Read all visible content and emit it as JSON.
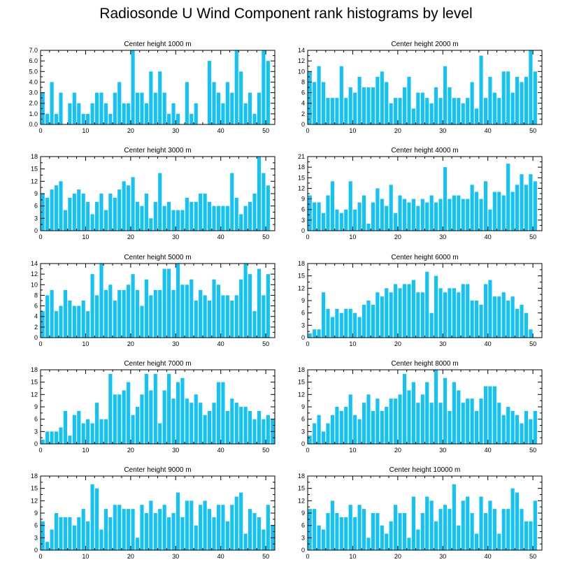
{
  "figure": {
    "title": "Radiosonde U Wind Component rank histograms by level",
    "bar_color": "#12c3f4",
    "axis_color": "#000000"
  },
  "chart_data": [
    {
      "type": "bar",
      "title": "Center height 1000 m",
      "xlim": [
        0,
        52
      ],
      "xticks": [
        0,
        10,
        20,
        30,
        40,
        50
      ],
      "ylim": [
        0,
        7
      ],
      "yticks": [
        0,
        1,
        2,
        3,
        4,
        5,
        6,
        7
      ],
      "ytick_labels": [
        "0.0",
        "1.0",
        "2.0",
        "3.0",
        "4.0",
        "5.0",
        "6.0",
        "7.0"
      ],
      "values": [
        3,
        1,
        4,
        1,
        3,
        0,
        2,
        3,
        2,
        1,
        1,
        2,
        3,
        3,
        2,
        1,
        3,
        4,
        2,
        2,
        7,
        3,
        3,
        2,
        5,
        3,
        5,
        3,
        1,
        2,
        1,
        0,
        4,
        1,
        2,
        0,
        0,
        6,
        4,
        3,
        2,
        4,
        3,
        7,
        5,
        2,
        3,
        1,
        3,
        7,
        6
      ]
    },
    {
      "type": "bar",
      "title": "Center height 2000 m",
      "xlim": [
        0,
        52
      ],
      "xticks": [
        0,
        10,
        20,
        30,
        40,
        50
      ],
      "ylim": [
        0,
        14
      ],
      "yticks": [
        0,
        2,
        4,
        6,
        8,
        10,
        12,
        14
      ],
      "ytick_labels": [
        "0",
        "2",
        "4",
        "6",
        "8",
        "10",
        "12",
        "14"
      ],
      "values": [
        10,
        8,
        11,
        8,
        5,
        5,
        5,
        11,
        5,
        7,
        6,
        9,
        7,
        7,
        7,
        9,
        10,
        8,
        4,
        5,
        5,
        7,
        9,
        3,
        6,
        6,
        5,
        4,
        7,
        5,
        11,
        7,
        5,
        5,
        4,
        5,
        8,
        3,
        13,
        5,
        9,
        6,
        5,
        10,
        10,
        6,
        9,
        8,
        9,
        14,
        10
      ]
    },
    {
      "type": "bar",
      "title": "Center height 3000 m",
      "xlim": [
        0,
        52
      ],
      "xticks": [
        0,
        10,
        20,
        30,
        40,
        50
      ],
      "ylim": [
        0,
        18
      ],
      "yticks": [
        0,
        3,
        6,
        9,
        12,
        15,
        18
      ],
      "ytick_labels": [
        "0",
        "3",
        "6",
        "9",
        "12",
        "15",
        "18"
      ],
      "values": [
        9,
        8,
        10,
        11,
        12,
        5,
        8,
        9,
        10,
        9,
        7,
        4,
        7,
        9,
        5,
        9,
        8,
        10,
        12,
        11,
        13,
        7,
        6,
        9,
        3,
        7,
        14,
        6,
        7,
        5,
        5,
        5,
        8,
        7,
        7,
        9,
        9,
        7,
        6,
        6,
        6,
        6,
        14,
        8,
        4,
        6,
        7,
        9,
        18,
        14,
        11
      ]
    },
    {
      "type": "bar",
      "title": "Center height 4000 m",
      "xlim": [
        0,
        52
      ],
      "xticks": [
        0,
        10,
        20,
        30,
        40,
        50
      ],
      "ylim": [
        0,
        21
      ],
      "yticks": [
        0,
        3,
        6,
        9,
        12,
        15,
        18,
        21
      ],
      "ytick_labels": [
        "0",
        "3",
        "6",
        "9",
        "12",
        "15",
        "18",
        "21"
      ],
      "values": [
        10,
        8,
        8,
        5,
        10,
        14,
        6,
        5,
        6,
        14,
        6,
        8,
        10,
        2,
        8,
        12,
        9,
        7,
        13,
        5,
        10,
        9,
        8,
        9,
        7,
        9,
        8,
        10,
        8,
        9,
        18,
        9,
        10,
        10,
        9,
        9,
        13,
        11,
        9,
        14,
        6,
        11,
        11,
        10,
        19,
        11,
        13,
        16,
        13,
        16,
        14
      ]
    },
    {
      "type": "bar",
      "title": "Center height 5000 m",
      "xlim": [
        0,
        52
      ],
      "xticks": [
        0,
        10,
        20,
        30,
        40,
        50
      ],
      "ylim": [
        0,
        14
      ],
      "yticks": [
        0,
        2,
        4,
        6,
        8,
        10,
        12,
        14
      ],
      "ytick_labels": [
        "0",
        "2",
        "4",
        "6",
        "8",
        "10",
        "12",
        "14"
      ],
      "values": [
        5,
        8,
        9,
        5,
        6,
        9,
        7,
        6,
        6,
        7,
        5,
        12,
        8,
        14,
        9,
        10,
        7,
        9,
        9,
        10,
        12,
        9,
        6,
        11,
        8,
        9,
        9,
        13,
        13,
        9,
        14,
        10,
        10,
        11,
        7,
        9,
        8,
        7,
        11,
        10,
        8,
        8,
        7,
        8,
        11,
        14,
        12,
        5,
        13,
        8,
        12
      ]
    },
    {
      "type": "bar",
      "title": "Center height 6000 m",
      "xlim": [
        0,
        52
      ],
      "xticks": [
        0,
        10,
        20,
        30,
        40,
        50
      ],
      "ylim": [
        0,
        18
      ],
      "yticks": [
        0,
        3,
        6,
        9,
        12,
        15,
        18
      ],
      "ytick_labels": [
        "0",
        "3",
        "6",
        "9",
        "12",
        "15",
        "18"
      ],
      "values": [
        1,
        2,
        2,
        11,
        7,
        5,
        7,
        6,
        7,
        7,
        6,
        5,
        8,
        9,
        8,
        11,
        10,
        12,
        11,
        13,
        12,
        13,
        13,
        14,
        11,
        11,
        16,
        6,
        15,
        12,
        11,
        12,
        12,
        11,
        13,
        13,
        9,
        9,
        8,
        13,
        14,
        10,
        10,
        11,
        9,
        10,
        7,
        8,
        6,
        2,
        0
      ]
    },
    {
      "type": "bar",
      "title": "Center height 7000 m",
      "xlim": [
        0,
        52
      ],
      "xticks": [
        0,
        10,
        20,
        30,
        40,
        50
      ],
      "ylim": [
        0,
        18
      ],
      "yticks": [
        0,
        3,
        6,
        9,
        12,
        15,
        18
      ],
      "ytick_labels": [
        "0",
        "3",
        "6",
        "9",
        "12",
        "15",
        "18"
      ],
      "values": [
        1,
        3,
        3,
        3,
        4,
        8,
        2,
        7,
        8,
        5,
        6,
        5,
        10,
        6,
        6,
        17,
        12,
        12,
        13,
        15,
        7,
        9,
        12,
        17,
        13,
        17,
        5,
        13,
        17,
        11,
        15,
        16,
        11,
        10,
        12,
        10,
        7,
        8,
        10,
        15,
        15,
        8,
        11,
        10,
        9,
        9,
        8,
        6,
        8,
        6,
        7,
        6
      ]
    },
    {
      "type": "bar",
      "title": "Center height 8000 m",
      "xlim": [
        0,
        52
      ],
      "xticks": [
        0,
        10,
        20,
        30,
        40,
        50
      ],
      "ylim": [
        0,
        18
      ],
      "yticks": [
        0,
        3,
        6,
        9,
        12,
        15,
        18
      ],
      "ytick_labels": [
        "0",
        "3",
        "6",
        "9",
        "12",
        "15",
        "18"
      ],
      "values": [
        2,
        5,
        7,
        3,
        5,
        7,
        9,
        8,
        9,
        12,
        7,
        6,
        10,
        12,
        8,
        11,
        8,
        9,
        11,
        11,
        12,
        17,
        13,
        15,
        10,
        12,
        15,
        10,
        18,
        10,
        16,
        8,
        15,
        13,
        10,
        11,
        11,
        8,
        11,
        14,
        14,
        14,
        10,
        7,
        9,
        8,
        7,
        5,
        8,
        6,
        8
      ]
    },
    {
      "type": "bar",
      "title": "Center height 9000 m",
      "xlim": [
        0,
        52
      ],
      "xticks": [
        0,
        10,
        20,
        30,
        40,
        50
      ],
      "ylim": [
        0,
        18
      ],
      "yticks": [
        0,
        3,
        6,
        9,
        12,
        15,
        18
      ],
      "ytick_labels": [
        "0",
        "3",
        "6",
        "9",
        "12",
        "15",
        "18"
      ],
      "values": [
        7,
        2,
        5,
        9,
        8,
        8,
        8,
        6,
        8,
        10,
        7,
        16,
        15,
        5,
        10,
        8,
        11,
        11,
        10,
        10,
        10,
        3,
        11,
        9,
        12,
        9,
        10,
        11,
        8,
        9,
        14,
        8,
        12,
        12,
        6,
        11,
        12,
        10,
        8,
        11,
        11,
        7,
        11,
        13,
        14,
        4,
        10,
        9,
        8,
        5,
        11,
        6
      ]
    },
    {
      "type": "bar",
      "title": "Center height 10000 m",
      "xlim": [
        0,
        52
      ],
      "xticks": [
        0,
        10,
        20,
        30,
        40,
        50
      ],
      "ylim": [
        0,
        18
      ],
      "yticks": [
        0,
        3,
        6,
        9,
        12,
        15,
        18
      ],
      "ytick_labels": [
        "0",
        "3",
        "6",
        "9",
        "12",
        "15",
        "18"
      ],
      "values": [
        10,
        10,
        6,
        5,
        9,
        12,
        9,
        8,
        8,
        11,
        8,
        11,
        10,
        3,
        9,
        9,
        6,
        4,
        7,
        11,
        9,
        9,
        3,
        13,
        5,
        9,
        13,
        12,
        7,
        10,
        11,
        10,
        16,
        6,
        12,
        13,
        9,
        4,
        13,
        9,
        12,
        10,
        4,
        10,
        10,
        15,
        14,
        10,
        7,
        7,
        12
      ]
    }
  ]
}
